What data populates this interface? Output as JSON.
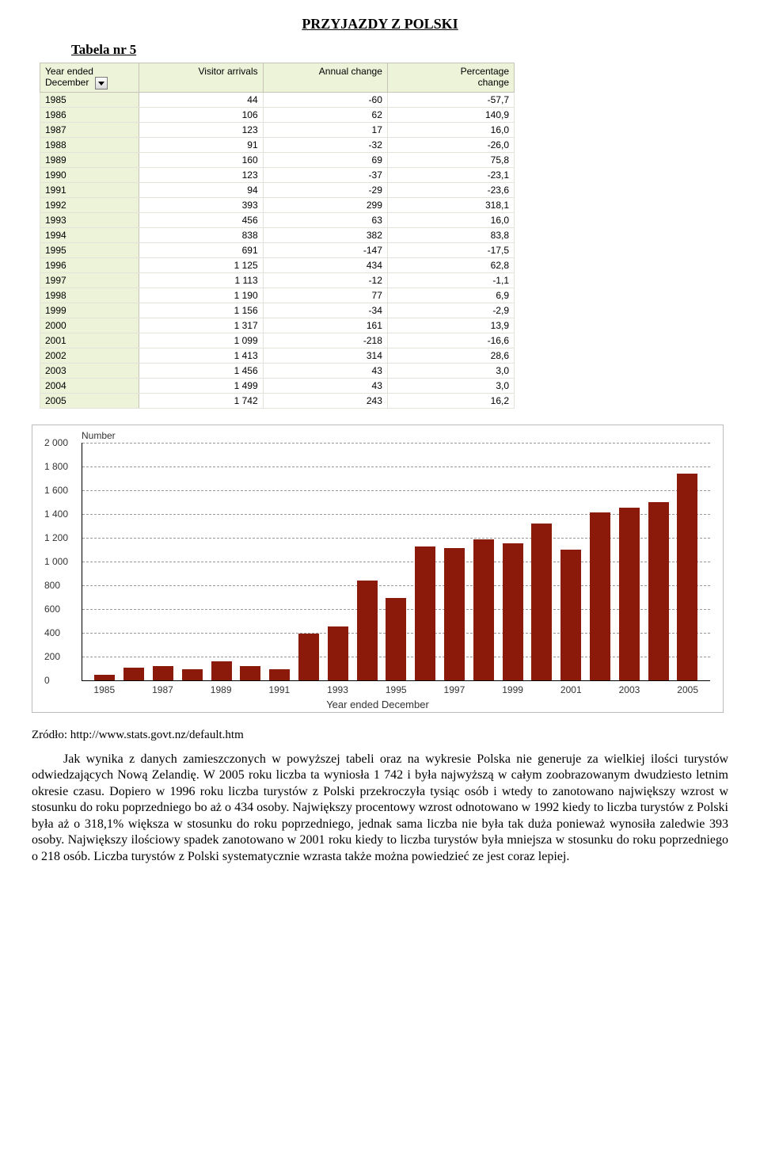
{
  "title": "PRZYJAZDY Z POLSKI",
  "subtitle": "Tabela nr 5",
  "table": {
    "headers": {
      "year_line1": "Year ended",
      "year_line2": "December",
      "visitor": "Visitor arrivals",
      "annual": "Annual change",
      "percent_line1": "Percentage",
      "percent_line2": "change"
    },
    "rows": [
      {
        "year": "1985",
        "visitor": "44",
        "annual": "-60",
        "percent": "-57,7"
      },
      {
        "year": "1986",
        "visitor": "106",
        "annual": "62",
        "percent": "140,9"
      },
      {
        "year": "1987",
        "visitor": "123",
        "annual": "17",
        "percent": "16,0"
      },
      {
        "year": "1988",
        "visitor": "91",
        "annual": "-32",
        "percent": "-26,0"
      },
      {
        "year": "1989",
        "visitor": "160",
        "annual": "69",
        "percent": "75,8"
      },
      {
        "year": "1990",
        "visitor": "123",
        "annual": "-37",
        "percent": "-23,1"
      },
      {
        "year": "1991",
        "visitor": "94",
        "annual": "-29",
        "percent": "-23,6"
      },
      {
        "year": "1992",
        "visitor": "393",
        "annual": "299",
        "percent": "318,1"
      },
      {
        "year": "1993",
        "visitor": "456",
        "annual": "63",
        "percent": "16,0"
      },
      {
        "year": "1994",
        "visitor": "838",
        "annual": "382",
        "percent": "83,8"
      },
      {
        "year": "1995",
        "visitor": "691",
        "annual": "-147",
        "percent": "-17,5"
      },
      {
        "year": "1996",
        "visitor": "1 125",
        "annual": "434",
        "percent": "62,8"
      },
      {
        "year": "1997",
        "visitor": "1 113",
        "annual": "-12",
        "percent": "-1,1"
      },
      {
        "year": "1998",
        "visitor": "1 190",
        "annual": "77",
        "percent": "6,9"
      },
      {
        "year": "1999",
        "visitor": "1 156",
        "annual": "-34",
        "percent": "-2,9"
      },
      {
        "year": "2000",
        "visitor": "1 317",
        "annual": "161",
        "percent": "13,9"
      },
      {
        "year": "2001",
        "visitor": "1 099",
        "annual": "-218",
        "percent": "-16,6"
      },
      {
        "year": "2002",
        "visitor": "1 413",
        "annual": "314",
        "percent": "28,6"
      },
      {
        "year": "2003",
        "visitor": "1 456",
        "annual": "43",
        "percent": "3,0"
      },
      {
        "year": "2004",
        "visitor": "1 499",
        "annual": "43",
        "percent": "3,0"
      },
      {
        "year": "2005",
        "visitor": "1 742",
        "annual": "243",
        "percent": "16,2"
      }
    ]
  },
  "chart": {
    "type": "bar",
    "y_label": "Number",
    "x_label": "Year ended December",
    "ymax": 2000,
    "ytick_step": 200,
    "yticks": [
      "0",
      "200",
      "400",
      "600",
      "800",
      "1 000",
      "1 200",
      "1 400",
      "1 600",
      "1 800",
      "2 000"
    ],
    "bar_color": "#8b1a0a",
    "grid_color": "#999999",
    "background_color": "#ffffff",
    "values": [
      44,
      106,
      123,
      91,
      160,
      123,
      94,
      393,
      456,
      838,
      691,
      1125,
      1113,
      1190,
      1156,
      1317,
      1099,
      1413,
      1456,
      1499,
      1742
    ],
    "x_ticks_every_other": [
      "1985",
      "",
      "1987",
      "",
      "1989",
      "",
      "1991",
      "",
      "1993",
      "",
      "1995",
      "",
      "1997",
      "",
      "1999",
      "",
      "2001",
      "",
      "2003",
      "",
      "2005"
    ]
  },
  "source": "Zródło: http://www.stats.govt.nz/default.htm",
  "body": "Jak wynika z danych zamieszczonych w powyższej tabeli oraz na wykresie Polska nie generuje za wielkiej ilości turystów odwiedzających Nową Zelandię. W 2005 roku liczba ta wyniosła 1 742 i była najwyższą w całym zoobrazowanym dwudziesto letnim okresie czasu. Dopiero w 1996 roku liczba turystów z Polski przekroczyła tysiąc osób i wtedy to zanotowano największy wzrost w stosunku do roku poprzedniego bo aż  o 434 osoby. Największy procentowy wzrost odnotowano w 1992 kiedy to liczba turystów z Polski była aż o 318,1% większa w stosunku do roku poprzedniego, jednak sama liczba nie była tak duża ponieważ wynosiła zaledwie 393 osoby. Największy ilościowy spadek zanotowano w 2001 roku kiedy to liczba turystów była mniejsza w stosunku do roku poprzedniego o 218 osób. Liczba turystów z Polski systematycznie wzrasta także można powiedzieć ze jest coraz lepiej."
}
